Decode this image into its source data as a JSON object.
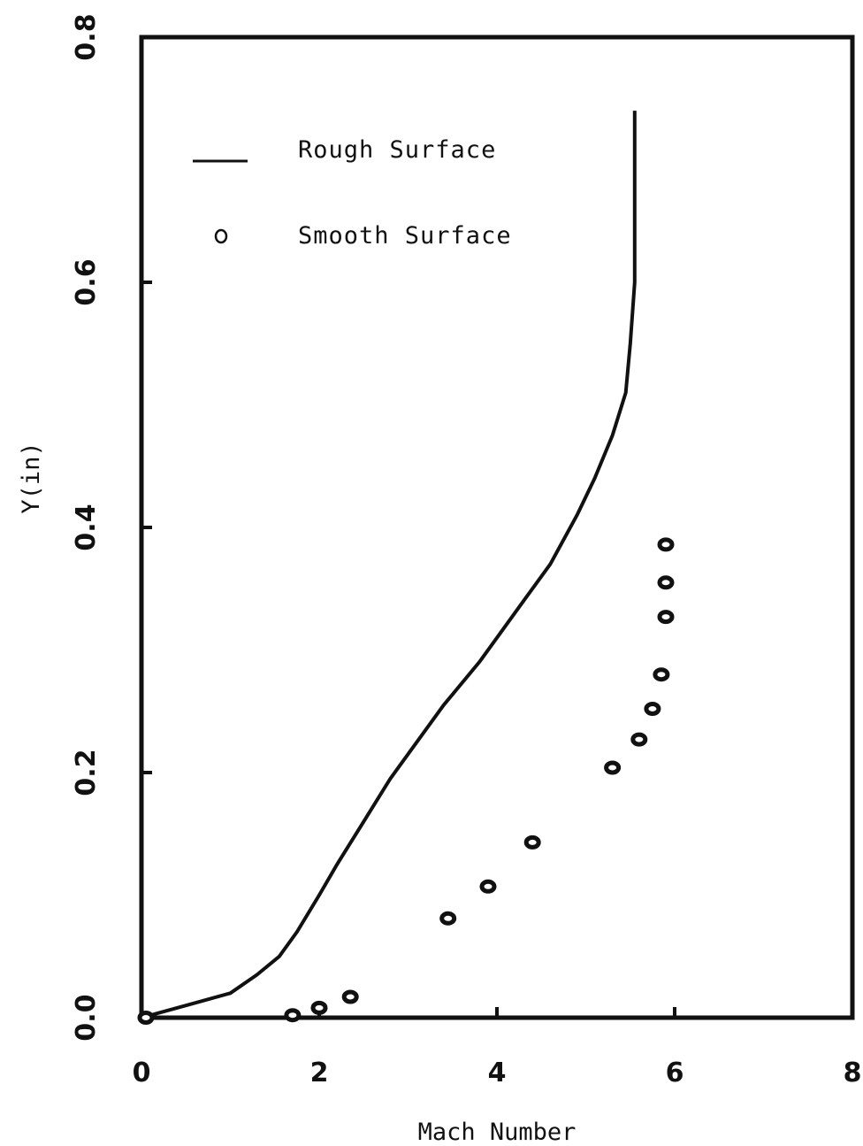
{
  "chart_data": {
    "type": "line",
    "xlabel": "Mach Number",
    "ylabel": "Y(in)",
    "xlim": [
      0,
      8
    ],
    "ylim": [
      0,
      0.8
    ],
    "x_ticks": [
      "0",
      "2",
      "4",
      "6",
      "8"
    ],
    "y_ticks": [
      "0.0",
      "0.2",
      "0.4",
      "0.6",
      "0.8"
    ],
    "grid": false,
    "legend_position": "top-left",
    "series": [
      {
        "name": "Rough Surface",
        "style": "line",
        "x": [
          0,
          0.5,
          1.0,
          1.3,
          1.55,
          1.75,
          2.0,
          2.2,
          2.5,
          2.8,
          3.0,
          3.4,
          3.8,
          4.0,
          4.3,
          4.6,
          4.9,
          5.1,
          5.3,
          5.45,
          5.5,
          5.55,
          5.55
        ],
        "y": [
          0,
          0.01,
          0.02,
          0.035,
          0.05,
          0.07,
          0.1,
          0.125,
          0.16,
          0.195,
          0.215,
          0.255,
          0.29,
          0.31,
          0.34,
          0.37,
          0.41,
          0.44,
          0.475,
          0.51,
          0.55,
          0.6,
          0.74
        ]
      },
      {
        "name": "Smooth Surface",
        "style": "points",
        "x": [
          0.05,
          1.7,
          2.0,
          2.35,
          3.45,
          3.9,
          4.4,
          5.3,
          5.6,
          5.75,
          5.85,
          5.9,
          5.9,
          5.9
        ],
        "y": [
          0.0,
          0.002,
          0.008,
          0.017,
          0.081,
          0.107,
          0.143,
          0.204,
          0.227,
          0.252,
          0.28,
          0.327,
          0.355,
          0.386
        ]
      }
    ]
  }
}
